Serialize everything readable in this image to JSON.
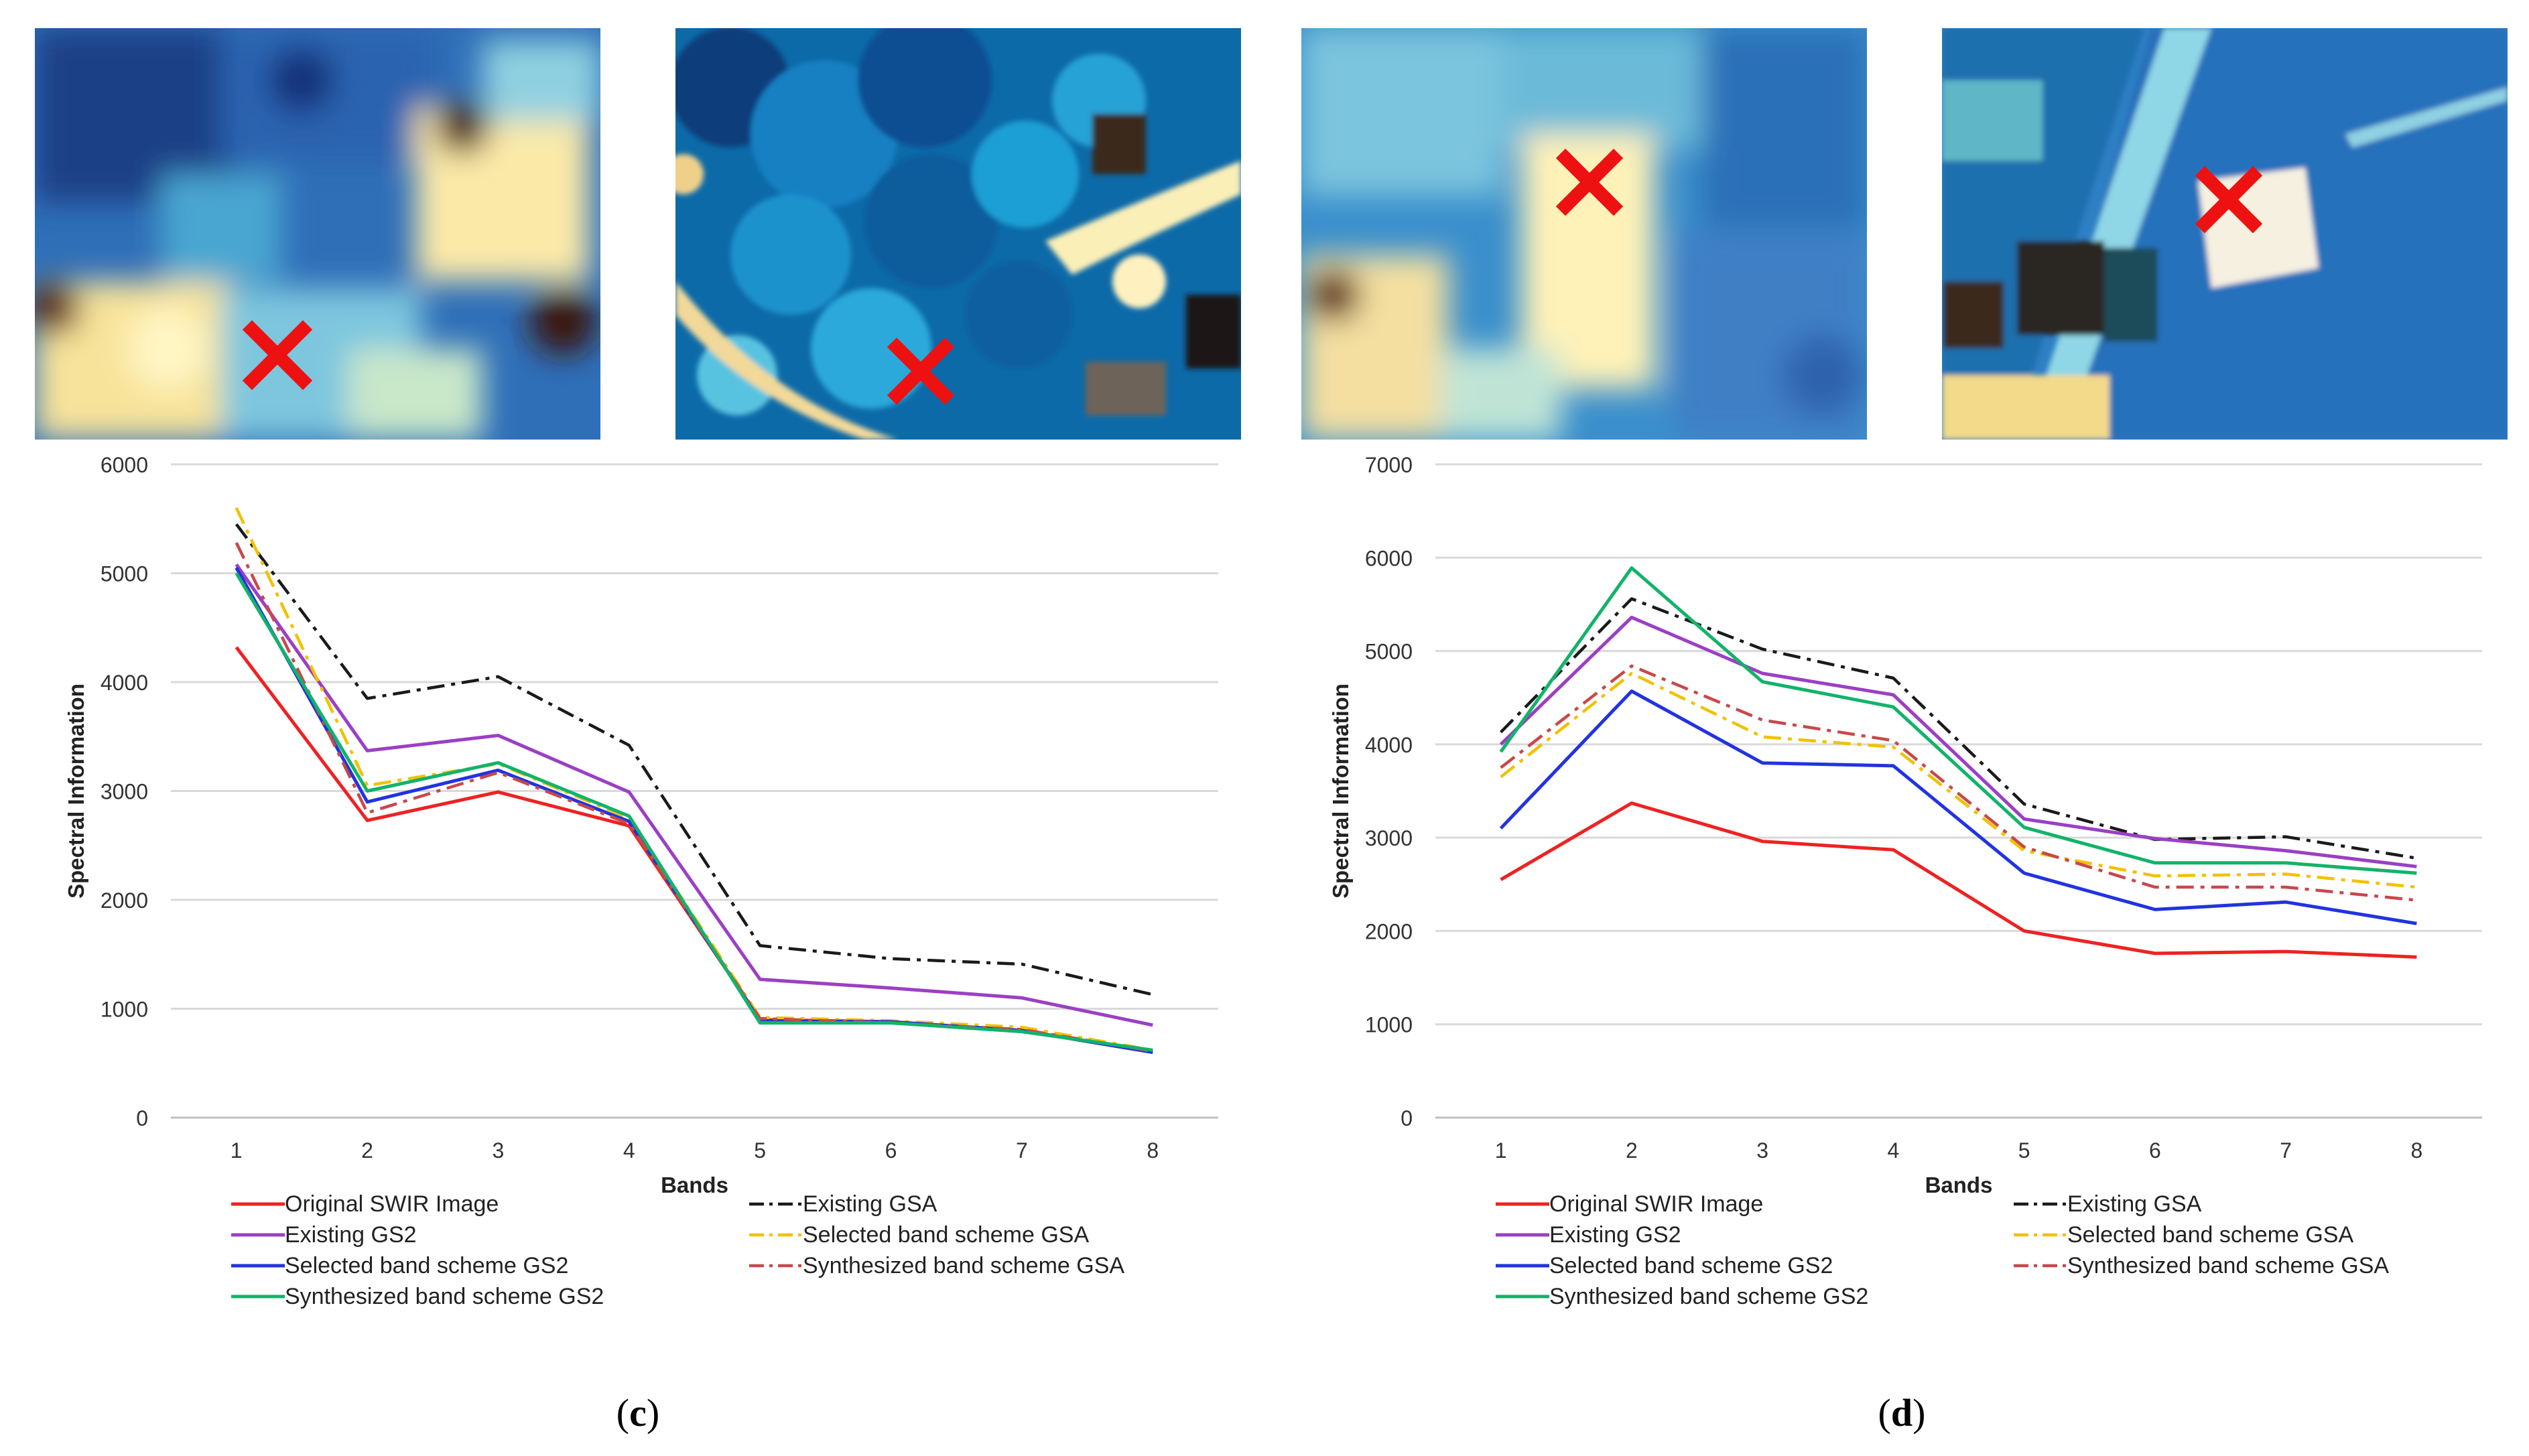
{
  "panels": [
    {
      "label": "c",
      "paren_open": "(",
      "paren_close": ")"
    },
    {
      "label": "d",
      "paren_open": "(",
      "paren_close": ")"
    }
  ],
  "colors": {
    "original_swir": "#ee2222",
    "existing_gs2": "#9b3fc4",
    "selected_gs2": "#2233e0",
    "synthesized_gs2": "#12b36a",
    "existing_gsa": "#1a1a1a",
    "selected_gsa": "#f2c100",
    "synthesized_gsa": "#c8484a",
    "marker": "#ee1111",
    "grid": "#d9d9d9",
    "axis_text": "#333333"
  },
  "chart_data": [
    {
      "type": "line",
      "panel": "c",
      "title": "",
      "xlabel": "Bands",
      "ylabel": "Spectral Information",
      "categories": [
        "1",
        "2",
        "3",
        "4",
        "5",
        "6",
        "7",
        "8"
      ],
      "ylim": [
        0,
        6000
      ],
      "yticks": [
        "0",
        "1000",
        "2000",
        "3000",
        "4000",
        "5000",
        "6000"
      ],
      "grid": true,
      "legend_position": "bottom",
      "series": [
        {
          "name": "Original SWIR Image",
          "style": "solid",
          "color_key": "original_swir",
          "values": [
            4320,
            2730,
            2990,
            2680,
            900,
            880,
            800,
            600
          ]
        },
        {
          "name": "Existing GSA",
          "style": "dashdot",
          "color_key": "existing_gsa",
          "values": [
            5450,
            3850,
            4050,
            3420,
            1580,
            1460,
            1410,
            1130
          ]
        },
        {
          "name": "Existing GS2",
          "style": "solid",
          "color_key": "existing_gs2",
          "values": [
            5080,
            3370,
            3510,
            2990,
            1270,
            1190,
            1100,
            850
          ]
        },
        {
          "name": "Selected band scheme GSA",
          "style": "dashdot",
          "color_key": "selected_gsa",
          "values": [
            5600,
            3050,
            3250,
            2750,
            920,
            890,
            830,
            620
          ]
        },
        {
          "name": "Selected band scheme GS2",
          "style": "solid",
          "color_key": "selected_gs2",
          "values": [
            5050,
            2900,
            3190,
            2720,
            890,
            880,
            800,
            600
          ]
        },
        {
          "name": "Synthesized band scheme GSA",
          "style": "dashdot",
          "color_key": "synthesized_gsa",
          "values": [
            5280,
            2800,
            3170,
            2700,
            910,
            870,
            810,
            610
          ]
        },
        {
          "name": "Synthesized band scheme GS2",
          "style": "solid",
          "color_key": "synthesized_gs2",
          "values": [
            5000,
            3000,
            3260,
            2770,
            870,
            870,
            790,
            620
          ]
        }
      ]
    },
    {
      "type": "line",
      "panel": "d",
      "title": "",
      "xlabel": "Bands",
      "ylabel": "Spectral Information",
      "categories": [
        "1",
        "2",
        "3",
        "4",
        "5",
        "6",
        "7",
        "8"
      ],
      "ylim": [
        0,
        7000
      ],
      "yticks": [
        "0",
        "1000",
        "2000",
        "3000",
        "4000",
        "5000",
        "6000",
        "7000"
      ],
      "grid": true,
      "legend_position": "bottom",
      "series": [
        {
          "name": "Original SWIR Image",
          "style": "solid",
          "color_key": "original_swir",
          "values": [
            2550,
            3370,
            2960,
            2870,
            2000,
            1760,
            1780,
            1720
          ]
        },
        {
          "name": "Existing GSA",
          "style": "dashdot",
          "color_key": "existing_gsa",
          "values": [
            4130,
            5560,
            5020,
            4710,
            3360,
            2980,
            3010,
            2780
          ]
        },
        {
          "name": "Existing GS2",
          "style": "solid",
          "color_key": "existing_gs2",
          "values": [
            4000,
            5360,
            4760,
            4530,
            3200,
            2990,
            2860,
            2690
          ]
        },
        {
          "name": "Selected band scheme GSA",
          "style": "dashdot",
          "color_key": "selected_gsa",
          "values": [
            3650,
            4760,
            4080,
            3970,
            2860,
            2590,
            2610,
            2470
          ]
        },
        {
          "name": "Selected band scheme GS2",
          "style": "solid",
          "color_key": "selected_gs2",
          "values": [
            3100,
            4570,
            3800,
            3770,
            2620,
            2230,
            2310,
            2080
          ]
        },
        {
          "name": "Synthesized band scheme GSA",
          "style": "dashdot",
          "color_key": "synthesized_gsa",
          "values": [
            3750,
            4840,
            4260,
            4040,
            2900,
            2470,
            2470,
            2330
          ]
        },
        {
          "name": "Synthesized band scheme GS2",
          "style": "solid",
          "color_key": "synthesized_gs2",
          "values": [
            3920,
            5890,
            4670,
            4400,
            3110,
            2730,
            2730,
            2620
          ]
        }
      ]
    }
  ],
  "legend_order": [
    {
      "left": "Original SWIR Image",
      "right": "Existing GSA"
    },
    {
      "left": "Existing GS2",
      "right": "Selected band scheme GSA"
    },
    {
      "left": "Selected band scheme GS2",
      "right": "Synthesized band scheme GSA"
    },
    {
      "left": "Synthesized band scheme GS2",
      "right": ""
    }
  ],
  "thumbnails": [
    {
      "panel": "c",
      "name": "low-resolution-swir-thumbnail",
      "marker_icon": "red-x-marker-icon"
    },
    {
      "panel": "c",
      "name": "high-resolution-fused-thumbnail",
      "marker_icon": "red-x-marker-icon"
    },
    {
      "panel": "d",
      "name": "low-resolution-swir-thumbnail",
      "marker_icon": "red-x-marker-icon"
    },
    {
      "panel": "d",
      "name": "high-resolution-fused-thumbnail",
      "marker_icon": "red-x-marker-icon"
    }
  ]
}
